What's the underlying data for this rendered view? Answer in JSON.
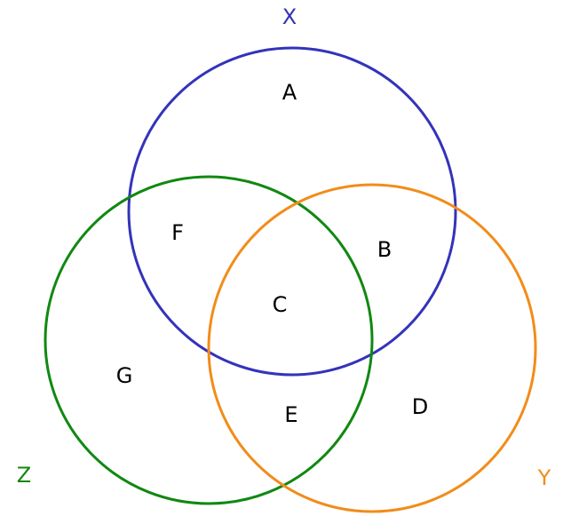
{
  "sets": [
    {
      "id": "x",
      "label": "X",
      "color": "#3333bb"
    },
    {
      "id": "y",
      "label": "Y",
      "color": "#f28c1a"
    },
    {
      "id": "z",
      "label": "Z",
      "color": "#118811"
    }
  ],
  "regions": {
    "a": "A",
    "b": "B",
    "c": "C",
    "d": "D",
    "e": "E",
    "f": "F",
    "g": "G"
  }
}
